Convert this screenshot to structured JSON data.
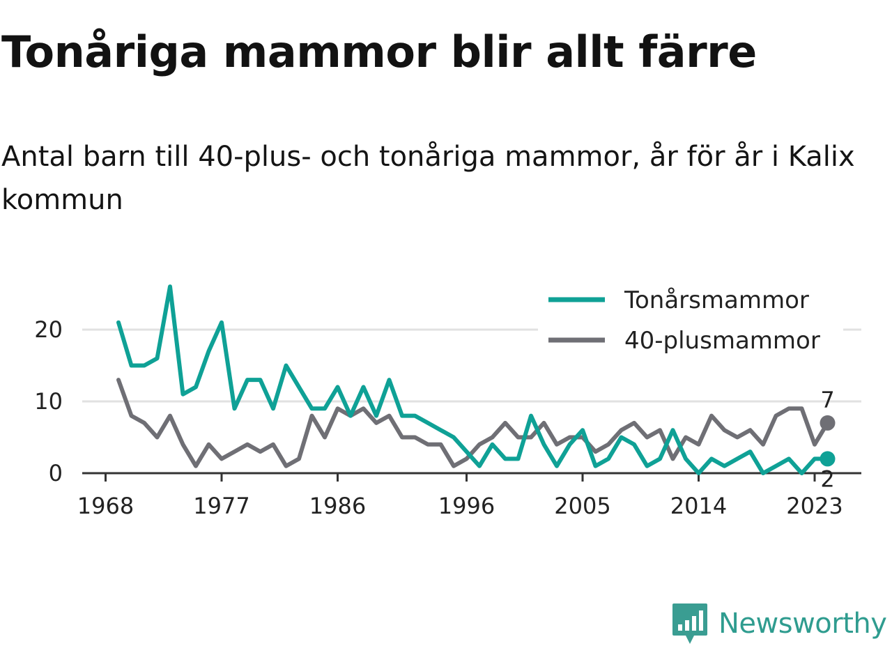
{
  "title": "Tonåriga mammor blir allt färre",
  "subtitle": "Antal barn till 40-plus- och tonåriga mammor, år för år i Kalix kommun",
  "brand": "Newsworthy",
  "colors": {
    "teal": "#0fa196",
    "gray": "#6f6f75",
    "grid": "#e1e1e1",
    "axis": "#333333"
  },
  "chart_data": {
    "type": "line",
    "x": [
      1969,
      1970,
      1971,
      1972,
      1973,
      1974,
      1975,
      1976,
      1977,
      1978,
      1979,
      1980,
      1981,
      1982,
      1983,
      1984,
      1985,
      1986,
      1987,
      1988,
      1989,
      1990,
      1991,
      1992,
      1993,
      1994,
      1995,
      1996,
      1997,
      1998,
      1999,
      2000,
      2001,
      2002,
      2003,
      2004,
      2005,
      2006,
      2007,
      2008,
      2009,
      2010,
      2011,
      2012,
      2013,
      2014,
      2015,
      2016,
      2017,
      2018,
      2019,
      2020,
      2021,
      2022,
      2023,
      2024
    ],
    "series": [
      {
        "name": "Tonårsmammor",
        "color": "#0fa196",
        "values": [
          21,
          15,
          15,
          16,
          26,
          11,
          12,
          17,
          21,
          9,
          13,
          13,
          9,
          15,
          12,
          9,
          9,
          12,
          8,
          12,
          8,
          13,
          8,
          8,
          7,
          6,
          5,
          3,
          1,
          4,
          2,
          2,
          8,
          4,
          1,
          4,
          6,
          1,
          2,
          5,
          4,
          1,
          2,
          6,
          2,
          0,
          2,
          1,
          2,
          3,
          0,
          1,
          2,
          0,
          2,
          2
        ],
        "end_label": "2"
      },
      {
        "name": "40-plusmammor",
        "color": "#6f6f75",
        "values": [
          13,
          8,
          7,
          5,
          8,
          4,
          1,
          4,
          2,
          3,
          4,
          3,
          4,
          1,
          2,
          8,
          5,
          9,
          8,
          9,
          7,
          8,
          5,
          5,
          4,
          4,
          1,
          2,
          4,
          5,
          7,
          5,
          5,
          7,
          4,
          5,
          5,
          3,
          4,
          6,
          7,
          5,
          6,
          2,
          5,
          4,
          8,
          6,
          5,
          6,
          4,
          8,
          9,
          9,
          4,
          7
        ],
        "end_label": "7"
      }
    ],
    "x_ticks": [
      "1968",
      "1977",
      "1986",
      "1996",
      "2005",
      "2014",
      "2023"
    ],
    "y_ticks": [
      "0",
      "10",
      "20"
    ],
    "ylim": [
      0,
      26
    ],
    "grid": true,
    "legend_position": "top-right"
  }
}
